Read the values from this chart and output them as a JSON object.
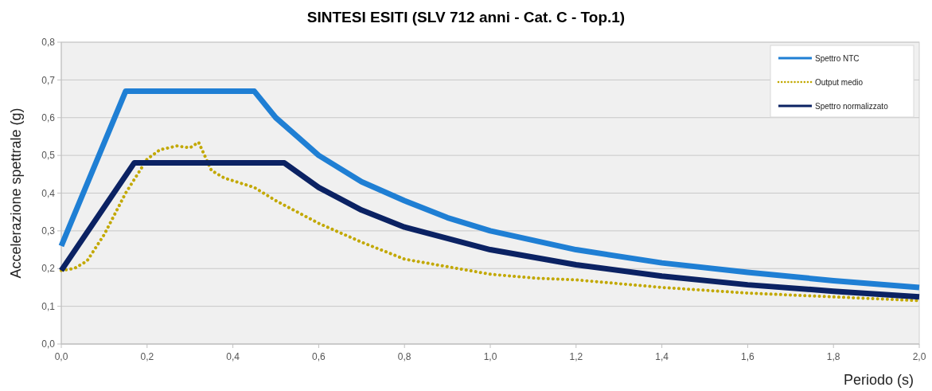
{
  "chart_data": {
    "type": "line",
    "title": "SINTESI ESITI (SLV 712 anni - Cat. C - Top.1)",
    "xlabel": "Periodo (s)",
    "ylabel": "Accelerazione spettrale (g)",
    "xlim": [
      0,
      2
    ],
    "xticks": [
      {
        "value": 0,
        "label": "0,0"
      },
      {
        "value": 0.2,
        "label": "0,2"
      },
      {
        "value": 0.4,
        "label": "0,4"
      },
      {
        "value": 0.6,
        "label": "0,6"
      },
      {
        "value": 0.8,
        "label": "0,8"
      },
      {
        "value": 1,
        "label": "1,0"
      },
      {
        "value": 1.2,
        "label": "1,2"
      },
      {
        "value": 1.4,
        "label": "1,4"
      },
      {
        "value": 1.6,
        "label": "1,6"
      },
      {
        "value": 1.8,
        "label": "1,8"
      },
      {
        "value": 2,
        "label": "2,0"
      }
    ],
    "ylim": [
      0,
      0.8
    ],
    "yticks": [
      {
        "value": 0,
        "label": "0,0"
      },
      {
        "value": 0.1,
        "label": "0,1"
      },
      {
        "value": 0.2,
        "label": "0,2"
      },
      {
        "value": 0.3,
        "label": "0,3"
      },
      {
        "value": 0.4,
        "label": "0,4"
      },
      {
        "value": 0.5,
        "label": "0,5"
      },
      {
        "value": 0.6,
        "label": "0,6"
      },
      {
        "value": 0.7,
        "label": "0,7"
      },
      {
        "value": 0.8,
        "label": "0,8"
      }
    ],
    "grid": "y",
    "legend": "top right",
    "series": [
      {
        "name": "Spettro NTC",
        "color": "#1f7fd4",
        "line_style": "solid",
        "x": [
          0,
          0.15,
          0.45,
          0.5,
          0.55,
          0.6,
          0.7,
          0.8,
          0.9,
          1.0,
          1.2,
          1.4,
          1.6,
          1.8,
          2.0
        ],
        "values": [
          0.26,
          0.67,
          0.67,
          0.6,
          0.55,
          0.5,
          0.43,
          0.38,
          0.335,
          0.3,
          0.25,
          0.215,
          0.19,
          0.168,
          0.15
        ]
      },
      {
        "name": "Output medio",
        "color": "#c2a800",
        "line_style": "dotted",
        "x": [
          0,
          0.03,
          0.06,
          0.1,
          0.15,
          0.2,
          0.23,
          0.27,
          0.3,
          0.32,
          0.35,
          0.38,
          0.45,
          0.5,
          0.6,
          0.7,
          0.8,
          0.9,
          1.0,
          1.1,
          1.2,
          1.4,
          1.6,
          1.8,
          2.0
        ],
        "values": [
          0.195,
          0.2,
          0.22,
          0.29,
          0.4,
          0.49,
          0.515,
          0.525,
          0.52,
          0.535,
          0.46,
          0.44,
          0.415,
          0.38,
          0.32,
          0.27,
          0.225,
          0.205,
          0.185,
          0.175,
          0.17,
          0.15,
          0.135,
          0.125,
          0.115
        ]
      },
      {
        "name": "Spettro normalizzato",
        "color": "#0b2263",
        "line_style": "solid",
        "x": [
          0,
          0.17,
          0.52,
          0.6,
          0.7,
          0.8,
          0.9,
          1.0,
          1.2,
          1.4,
          1.6,
          1.8,
          2.0
        ],
        "values": [
          0.195,
          0.48,
          0.48,
          0.415,
          0.355,
          0.31,
          0.28,
          0.25,
          0.21,
          0.18,
          0.157,
          0.14,
          0.125
        ]
      }
    ]
  }
}
